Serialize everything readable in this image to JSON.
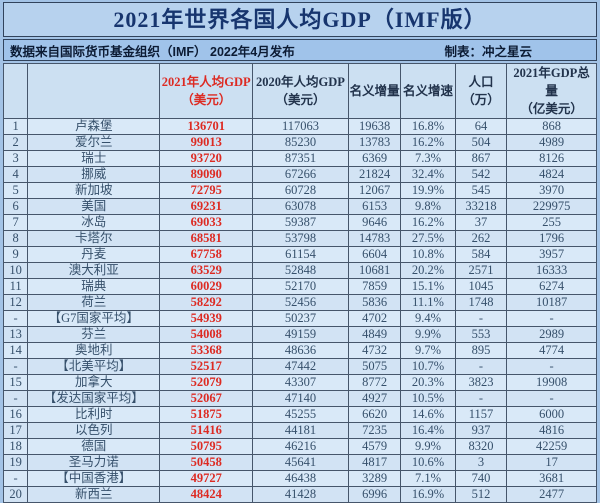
{
  "title": "2021年世界各国人均GDP（IMF版）",
  "subtitle": {
    "source": "数据来自国际货币基金组织（IMF） 2022年4月发布",
    "credit": "制表：冲之星云"
  },
  "colors": {
    "title_bg": "#b7d2ee",
    "subtitle_bg": "#a0c3ea",
    "row_bg": "#d9e9f8",
    "header_bg": "#cce0f2",
    "accent_red": "#dd2a22",
    "title_text": "#17356e",
    "body_text": "#36506b",
    "grid_line": "#46566b"
  },
  "chart_data": {
    "type": "table",
    "title": "2021年世界各国人均GDP（IMF版）",
    "headers": [
      {
        "text": "",
        "red": false
      },
      {
        "text": "",
        "red": false
      },
      {
        "text": "2021年人均GDP\n（美元）",
        "red": true
      },
      {
        "text": "2020年人均GDP\n（美元）",
        "red": false
      },
      {
        "text": "名义增量",
        "red": false
      },
      {
        "text": "名义增速",
        "red": false
      },
      {
        "text": "人口\n（万）",
        "red": false
      },
      {
        "text": "2021年GDP总量\n（亿美元）",
        "red": false
      }
    ],
    "rows": [
      [
        "1",
        "卢森堡",
        "136701",
        "117063",
        "19638",
        "16.8%",
        "64",
        "868"
      ],
      [
        "2",
        "爱尔兰",
        "99013",
        "85230",
        "13783",
        "16.2%",
        "504",
        "4989"
      ],
      [
        "3",
        "瑞士",
        "93720",
        "87351",
        "6369",
        "7.3%",
        "867",
        "8126"
      ],
      [
        "4",
        "挪威",
        "89090",
        "67266",
        "21824",
        "32.4%",
        "542",
        "4824"
      ],
      [
        "5",
        "新加坡",
        "72795",
        "60728",
        "12067",
        "19.9%",
        "545",
        "3970"
      ],
      [
        "6",
        "美国",
        "69231",
        "63078",
        "6153",
        "9.8%",
        "33218",
        "229975"
      ],
      [
        "7",
        "冰岛",
        "69033",
        "59387",
        "9646",
        "16.2%",
        "37",
        "255"
      ],
      [
        "8",
        "卡塔尔",
        "68581",
        "53798",
        "14783",
        "27.5%",
        "262",
        "1796"
      ],
      [
        "9",
        "丹麦",
        "67758",
        "61154",
        "6604",
        "10.8%",
        "584",
        "3957"
      ],
      [
        "10",
        "澳大利亚",
        "63529",
        "52848",
        "10681",
        "20.2%",
        "2571",
        "16333"
      ],
      [
        "11",
        "瑞典",
        "60029",
        "52170",
        "7859",
        "15.1%",
        "1045",
        "6274"
      ],
      [
        "12",
        "荷兰",
        "58292",
        "52456",
        "5836",
        "11.1%",
        "1748",
        "10187"
      ],
      [
        "-",
        "【G7国家平均】",
        "54939",
        "50237",
        "4702",
        "9.4%",
        "-",
        "-"
      ],
      [
        "13",
        "芬兰",
        "54008",
        "49159",
        "4849",
        "9.9%",
        "553",
        "2989"
      ],
      [
        "14",
        "奥地利",
        "53368",
        "48636",
        "4732",
        "9.7%",
        "895",
        "4774"
      ],
      [
        "-",
        "【北美平均】",
        "52517",
        "47442",
        "5075",
        "10.7%",
        "-",
        "-"
      ],
      [
        "15",
        "加拿大",
        "52079",
        "43307",
        "8772",
        "20.3%",
        "3823",
        "19908"
      ],
      [
        "-",
        "【发达国家平均】",
        "52067",
        "47140",
        "4927",
        "10.5%",
        "-",
        "-"
      ],
      [
        "16",
        "比利时",
        "51875",
        "45255",
        "6620",
        "14.6%",
        "1157",
        "6000"
      ],
      [
        "17",
        "以色列",
        "51416",
        "44181",
        "7235",
        "16.4%",
        "937",
        "4816"
      ],
      [
        "18",
        "德国",
        "50795",
        "46216",
        "4579",
        "9.9%",
        "8320",
        "42259"
      ],
      [
        "19",
        "圣马力诺",
        "50458",
        "45641",
        "4817",
        "10.6%",
        "3",
        "17"
      ],
      [
        "-",
        "【中国香港】",
        "49727",
        "46438",
        "3289",
        "7.1%",
        "740",
        "3681"
      ],
      [
        "20",
        "新西兰",
        "48424",
        "41428",
        "6996",
        "16.9%",
        "512",
        "2477"
      ]
    ]
  }
}
